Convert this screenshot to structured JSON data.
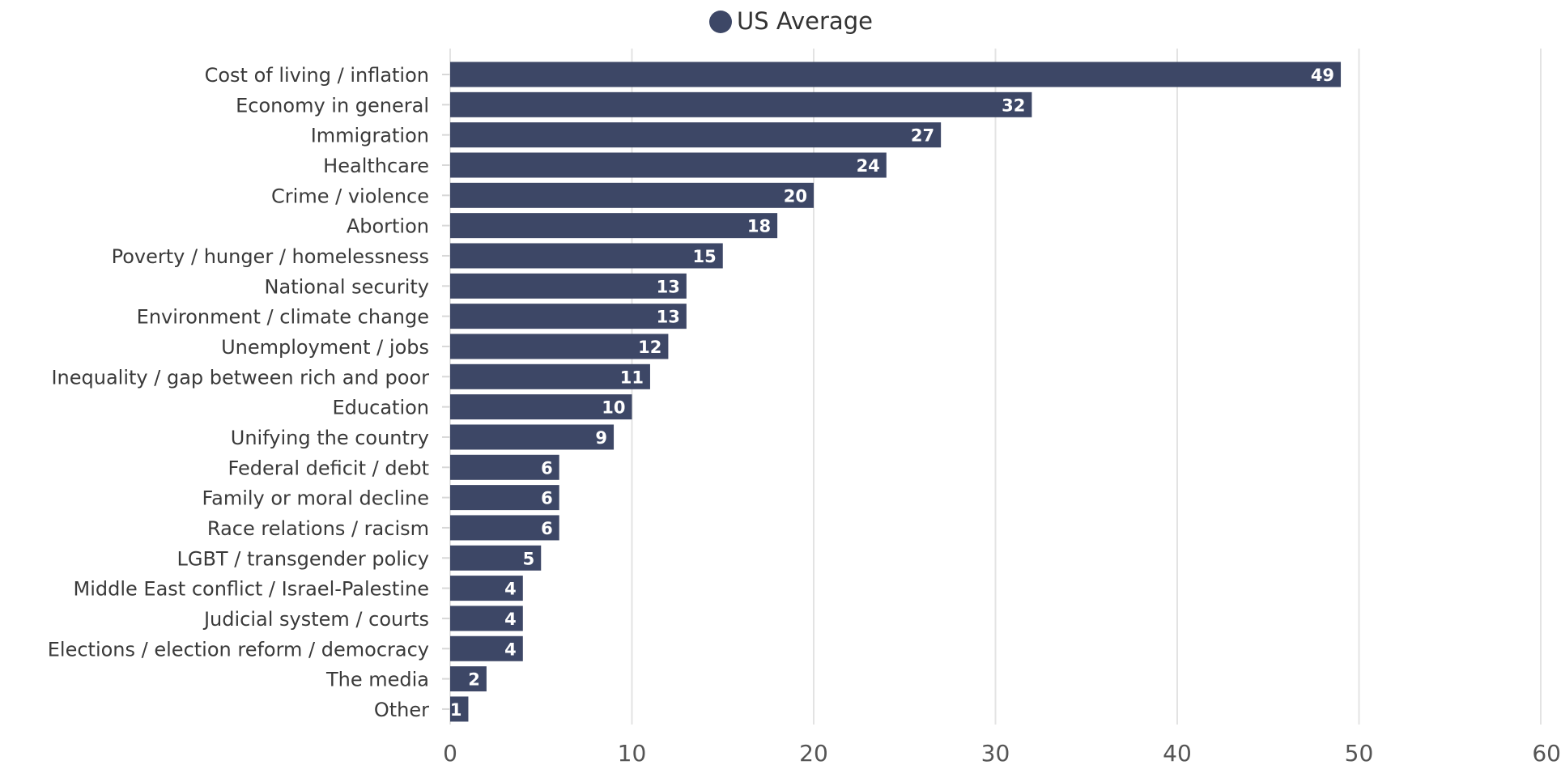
{
  "chart_data": {
    "type": "bar",
    "orientation": "horizontal",
    "legend": {
      "label": "US Average",
      "placement": "top-center"
    },
    "series": [
      {
        "name": "US Average",
        "color": "#3d4766"
      }
    ],
    "categories": [
      "Cost of living / inflation",
      "Economy in general",
      "Immigration",
      "Healthcare",
      "Crime / violence",
      "Abortion",
      "Poverty / hunger / homelessness",
      "National security",
      "Environment / climate change",
      "Unemployment / jobs",
      "Inequality / gap between rich and poor",
      "Education",
      "Unifying the country",
      "Federal deficit / debt",
      "Family or moral decline",
      "Race relations / racism",
      "LGBT / transgender policy",
      "Middle East conflict / Israel-Palestine",
      "Judicial system / courts",
      "Elections / election reform / democracy",
      "The media",
      "Other"
    ],
    "values": [
      49,
      32,
      27,
      24,
      20,
      18,
      15,
      13,
      13,
      12,
      11,
      10,
      9,
      6,
      6,
      6,
      5,
      4,
      4,
      4,
      2,
      1
    ],
    "xlim": [
      0,
      60
    ],
    "xticks": [
      0,
      10,
      20,
      30,
      40,
      50,
      60
    ],
    "grid": true,
    "data_labels": true
  }
}
